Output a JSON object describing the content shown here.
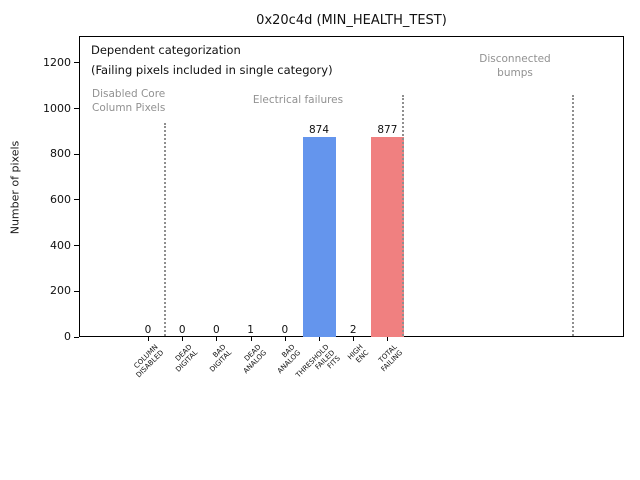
{
  "chart_data": {
    "type": "bar",
    "title": "0x20c4d (MIN_HEALTH_TEST)",
    "ylabel": "Number of pixels",
    "ylim": [
      0,
      1318
    ],
    "yticks": [
      0,
      200,
      400,
      600,
      800,
      1000,
      1200
    ],
    "grid": false,
    "legend_position": "none",
    "categories": [
      "COLUMN DISABLED",
      "DEAD DIGITAL",
      "BAD DIGITAL",
      "DEAD ANALOG",
      "BAD ANALOG",
      "THRESHOLD FAILED FITS",
      "HIGH ENC",
      "TOTAL FAILING"
    ],
    "category_lines": [
      [
        "COLUMN",
        "DISABLED"
      ],
      [
        "DEAD",
        "DIGITAL"
      ],
      [
        "BAD",
        "DIGITAL"
      ],
      [
        "DEAD",
        "ANALOG"
      ],
      [
        "BAD",
        "ANALOG"
      ],
      [
        "THRESHOLD",
        "FAILED",
        "FITS"
      ],
      [
        "HIGH",
        "ENC"
      ],
      [
        "TOTAL",
        "FAILING"
      ]
    ],
    "values": [
      0,
      0,
      0,
      1,
      0,
      874,
      2,
      877
    ],
    "bar_colors": [
      null,
      null,
      null,
      null,
      null,
      "#6495ed",
      null,
      "#f08080"
    ],
    "annotations": {
      "legend_line1": "Dependent categorization",
      "legend_line2": "(Failing pixels included in single category)",
      "groups": [
        {
          "label_lines": [
            "Disabled Core",
            "Column Pixels"
          ],
          "align": "left"
        },
        {
          "label_lines": [
            "Electrical failures"
          ],
          "align": "center"
        },
        {
          "label_lines": [
            "Disconnected",
            "bumps"
          ],
          "align": "center"
        }
      ]
    },
    "accent_colors": {
      "bar_blue": "#6495ed",
      "bar_red": "#f08080",
      "annotation_gray": "#919191"
    }
  }
}
